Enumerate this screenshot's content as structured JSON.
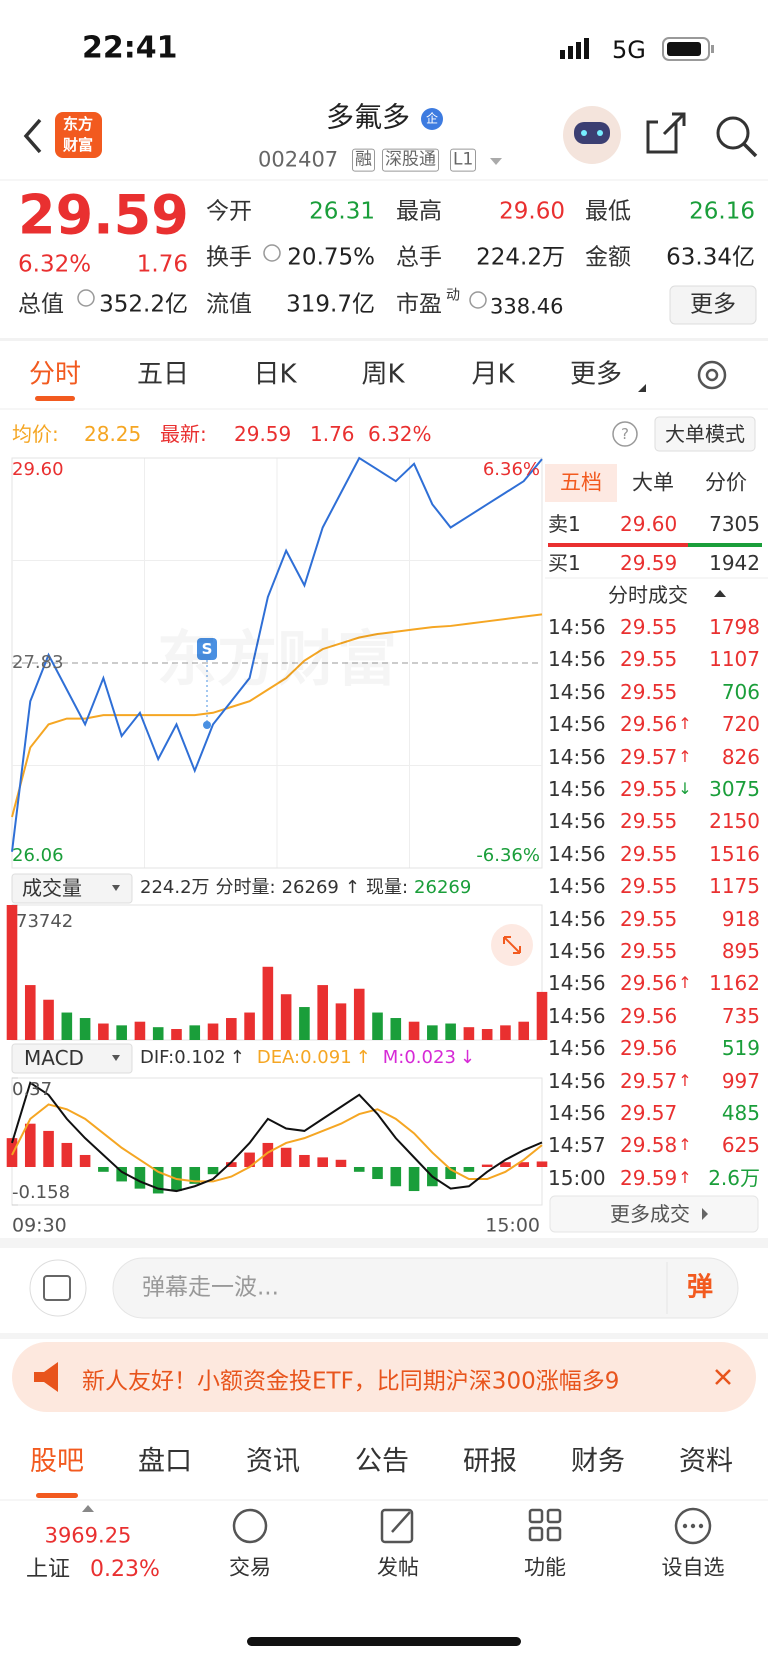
{
  "status_bar": {
    "time": "22:41",
    "network": "5G"
  },
  "header": {
    "logo": [
      "东方",
      "财富"
    ],
    "title": "多氟多",
    "badge": "企",
    "code": "002407",
    "tags": [
      "融",
      "深股通",
      "L1"
    ]
  },
  "quote": {
    "price": "29.59",
    "change_pct": "6.32%",
    "change": "1.76",
    "fields": [
      {
        "label": "今开",
        "value": "26.31",
        "color": "#1a9e3a"
      },
      {
        "label": "最高",
        "value": "29.60",
        "color": "#e93030"
      },
      {
        "label": "最低",
        "value": "26.16",
        "color": "#1a9e3a"
      },
      {
        "label": "换手",
        "value": "20.75%",
        "color": "#222222"
      },
      {
        "label": "总手",
        "value": "224.2万",
        "color": "#222222"
      },
      {
        "label": "金额",
        "value": "63.34亿",
        "color": "#222222"
      },
      {
        "label": "总值",
        "value": "352.2亿",
        "color": "#222222"
      },
      {
        "label": "流值",
        "value": "319.7亿",
        "color": "#222222"
      },
      {
        "label": "市盈",
        "sup": "动",
        "value": "338.46",
        "color": "#222222"
      }
    ],
    "more_button": "更多"
  },
  "chart_tabs": [
    "分时",
    "五日",
    "日K",
    "周K",
    "月K",
    "更多"
  ],
  "summary": {
    "avg_label": "均价:",
    "avg": "28.25",
    "latest_label": "最新:",
    "latest": "29.59",
    "change": "1.76",
    "change_pct": "6.32%",
    "help": "?",
    "mode_button": "大单模式"
  },
  "price_chart": {
    "type": "line",
    "ylim": [
      26.06,
      29.6
    ],
    "yticks": [
      26.06,
      27.83,
      {
        "value": 29.6,
        "label": "29.60"
      }
    ],
    "pct_labels": [
      "6.36%",
      "-6.36%"
    ],
    "watermark": "东方财富",
    "marker": "S",
    "price_color": "#2f6fd6",
    "average_color": "#f5a623",
    "price": [
      26.2,
      27.5,
      27.9,
      27.6,
      27.3,
      27.7,
      27.2,
      27.4,
      27.0,
      27.3,
      26.9,
      27.3,
      27.5,
      27.7,
      28.4,
      28.8,
      28.5,
      29.0,
      29.3,
      29.6,
      29.5,
      29.4,
      29.55,
      29.2,
      29.0,
      29.1,
      29.2,
      29.3,
      29.4,
      29.59
    ],
    "average": [
      26.5,
      27.1,
      27.3,
      27.35,
      27.35,
      27.38,
      27.38,
      27.38,
      27.38,
      27.38,
      27.38,
      27.4,
      27.45,
      27.5,
      27.6,
      27.7,
      27.85,
      27.95,
      28.0,
      28.05,
      28.08,
      28.1,
      28.12,
      28.14,
      28.15,
      28.17,
      28.19,
      28.21,
      28.23,
      28.25
    ]
  },
  "volume_chart": {
    "type": "bar",
    "indicator": "成交量",
    "total": "224.2万",
    "period_label": "分时量:",
    "period_value": "26269",
    "arrow": "↑",
    "current_label": "现量:",
    "current_value": "26269",
    "ylim": [
      0,
      73742
    ],
    "yticks": [
      73742
    ],
    "up_color": "#e93030",
    "down_color": "#1a9e3a",
    "values": [
      73742,
      30000,
      22000,
      15000,
      12000,
      9000,
      8000,
      10000,
      7000,
      6000,
      8000,
      9000,
      12000,
      15000,
      40000,
      25000,
      18000,
      30000,
      20000,
      28000,
      15000,
      12000,
      10000,
      8000,
      9000,
      7000,
      6000,
      8000,
      10000,
      26269
    ]
  },
  "macd_chart": {
    "type": "macd",
    "indicator": "MACD",
    "dif": {
      "label": "DIF:",
      "value": "0.102",
      "arrow": "↑"
    },
    "dea": {
      "label": "DEA:",
      "value": "0.091",
      "arrow": "↑"
    },
    "m": {
      "label": "M:",
      "value": "0.023",
      "arrow": "↓"
    },
    "ylim": [
      -0.158,
      0.37
    ],
    "yticks": [
      -0.158,
      0.37
    ],
    "hist": [
      0.12,
      0.18,
      0.15,
      0.1,
      0.05,
      -0.02,
      -0.06,
      -0.09,
      -0.11,
      -0.1,
      -0.07,
      -0.03,
      0.02,
      0.06,
      0.1,
      0.08,
      0.05,
      0.04,
      0.03,
      -0.02,
      -0.05,
      -0.08,
      -0.1,
      -0.08,
      -0.05,
      -0.02,
      0.01,
      0.02,
      0.02,
      0.023
    ],
    "dif_values": [
      0.1,
      0.35,
      0.3,
      0.2,
      0.12,
      0.05,
      -0.02,
      -0.06,
      -0.09,
      -0.1,
      -0.08,
      -0.05,
      0.02,
      0.1,
      0.2,
      0.16,
      0.15,
      0.2,
      0.25,
      0.3,
      0.22,
      0.12,
      0.04,
      -0.04,
      -0.09,
      -0.08,
      -0.02,
      0.03,
      0.07,
      0.102
    ],
    "dea_values": [
      0.05,
      0.2,
      0.26,
      0.24,
      0.2,
      0.14,
      0.08,
      0.03,
      -0.02,
      -0.05,
      -0.06,
      -0.06,
      -0.04,
      0.0,
      0.06,
      0.1,
      0.12,
      0.15,
      0.18,
      0.22,
      0.24,
      0.2,
      0.14,
      0.06,
      -0.01,
      -0.05,
      -0.05,
      -0.02,
      0.03,
      0.091
    ]
  },
  "time_axis": [
    "09:30",
    "15:00"
  ],
  "order_book": {
    "tabs": [
      "五档",
      "大单",
      "分价"
    ],
    "sell": {
      "label": "卖1",
      "price": "29.60",
      "volume": "7305"
    },
    "buy": {
      "label": "买1",
      "price": "29.59",
      "volume": "1942"
    }
  },
  "trades": {
    "title": "分时成交",
    "more": "更多成交",
    "rows": [
      {
        "time": "14:56",
        "price": "29.55",
        "volume": "1798",
        "color": "#e93030"
      },
      {
        "time": "14:56",
        "price": "29.55",
        "volume": "1107",
        "color": "#e93030"
      },
      {
        "time": "14:56",
        "price": "29.55",
        "volume": "706",
        "color": "#1a9e3a"
      },
      {
        "time": "14:56",
        "price": "29.56",
        "arrow": "↑",
        "volume": "720",
        "color": "#e93030"
      },
      {
        "time": "14:56",
        "price": "29.57",
        "arrow": "↑",
        "volume": "826",
        "color": "#e93030"
      },
      {
        "time": "14:56",
        "price": "29.55",
        "arrow": "↓",
        "volume": "3075",
        "color": "#1a9e3a"
      },
      {
        "time": "14:56",
        "price": "29.55",
        "volume": "2150",
        "color": "#e93030"
      },
      {
        "time": "14:56",
        "price": "29.55",
        "volume": "1516",
        "color": "#e93030"
      },
      {
        "time": "14:56",
        "price": "29.55",
        "volume": "1175",
        "color": "#e93030"
      },
      {
        "time": "14:56",
        "price": "29.55",
        "volume": "918",
        "color": "#e93030"
      },
      {
        "time": "14:56",
        "price": "29.55",
        "volume": "895",
        "color": "#e93030"
      },
      {
        "time": "14:56",
        "price": "29.56",
        "arrow": "↑",
        "volume": "1162",
        "color": "#e93030"
      },
      {
        "time": "14:56",
        "price": "29.56",
        "volume": "735",
        "color": "#e93030"
      },
      {
        "time": "14:56",
        "price": "29.56",
        "volume": "519",
        "color": "#1a9e3a"
      },
      {
        "time": "14:56",
        "price": "29.57",
        "arrow": "↑",
        "volume": "997",
        "color": "#e93030"
      },
      {
        "time": "14:56",
        "price": "29.57",
        "volume": "485",
        "color": "#1a9e3a"
      },
      {
        "time": "14:57",
        "price": "29.58",
        "arrow": "↑",
        "volume": "625",
        "color": "#e93030"
      },
      {
        "time": "15:00",
        "price": "29.59",
        "arrow": "↑",
        "volume": "2.6万",
        "color": "#1a9e3a"
      }
    ]
  },
  "comment": {
    "placeholder": "弹幕走一波...",
    "send": "弹"
  },
  "banner": {
    "text": "新人友好！小额资金投ETF，比同期沪深300涨幅多9"
  },
  "bottom_tabs": [
    "股吧",
    "盘口",
    "资讯",
    "公告",
    "研报",
    "财务",
    "资料"
  ],
  "bottom_nav": {
    "index_value": "3969.25",
    "index_name": "上证",
    "index_change": "0.23%",
    "items": [
      "交易",
      "发帖",
      "功能",
      "设自选"
    ]
  }
}
